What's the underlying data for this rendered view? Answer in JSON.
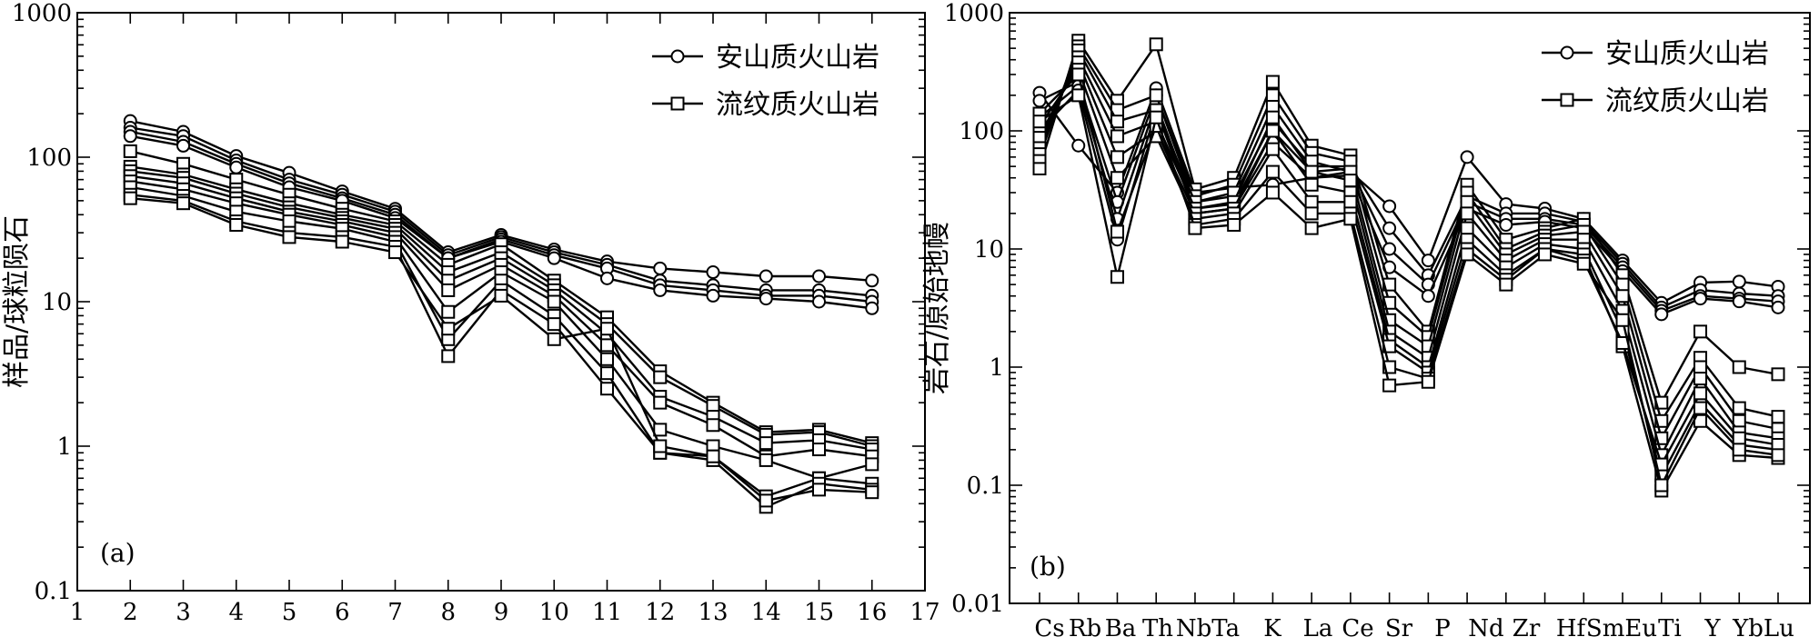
{
  "chart_data": [
    {
      "type": "line",
      "panel_label": "(a)",
      "ylabel": "样品/球粒陨石",
      "xlabel": "",
      "yscale": "log",
      "ylim": [
        0.1,
        1000
      ],
      "xlim": [
        1,
        17
      ],
      "x_ticks": [
        "1",
        "2",
        "3",
        "4",
        "5",
        "6",
        "7",
        "8",
        "9",
        "10",
        "11",
        "12",
        "13",
        "14",
        "15",
        "16",
        "17"
      ],
      "y_ticks": [
        "0.1",
        "1",
        "10",
        "100",
        "1000"
      ],
      "x": [
        2,
        3,
        4,
        5,
        6,
        7,
        8,
        9,
        10,
        11,
        12,
        13,
        14,
        15,
        16
      ],
      "legend_position": "top-right",
      "legend": [
        {
          "label": "安山质火山岩",
          "marker": "circle"
        },
        {
          "label": "流纹质火山岩",
          "marker": "square"
        }
      ],
      "series": [
        {
          "group": "安山质火山岩",
          "marker": "circle",
          "values": [
            178,
            150,
            102,
            78,
            58,
            44,
            22,
            29,
            23,
            19,
            17,
            16,
            15,
            15,
            14
          ]
        },
        {
          "group": "安山质火山岩",
          "marker": "circle",
          "values": [
            160,
            140,
            95,
            70,
            55,
            42,
            21,
            28,
            22,
            18,
            14,
            13,
            12,
            12,
            11
          ]
        },
        {
          "group": "安山质火山岩",
          "marker": "circle",
          "values": [
            150,
            128,
            90,
            66,
            52,
            40,
            20,
            27,
            21,
            17,
            13,
            12,
            11,
            11,
            10
          ]
        },
        {
          "group": "安山质火山岩",
          "marker": "circle",
          "values": [
            140,
            120,
            85,
            62,
            50,
            38,
            20,
            26,
            20,
            14.5,
            12,
            11,
            10.5,
            10,
            9
          ]
        },
        {
          "group": "流纹质火山岩",
          "marker": "square",
          "values": [
            110,
            90,
            70,
            55,
            44,
            36,
            18,
            25,
            14,
            7.8,
            3.3,
            2.0,
            1.25,
            1.3,
            1.05
          ]
        },
        {
          "group": "流纹质火山岩",
          "marker": "square",
          "values": [
            86,
            76,
            60,
            48,
            40,
            34,
            16,
            22,
            13,
            7.0,
            3.0,
            1.9,
            1.2,
            1.25,
            1.0
          ]
        },
        {
          "group": "流纹质火山岩",
          "marker": "square",
          "values": [
            80,
            72,
            56,
            45,
            38,
            32,
            14,
            20,
            12,
            6.0,
            2.2,
            1.6,
            1.05,
            1.1,
            0.95
          ]
        },
        {
          "group": "流纹质火山岩",
          "marker": "square",
          "values": [
            74,
            66,
            52,
            42,
            36,
            30,
            12,
            18,
            11,
            5.0,
            2.0,
            1.4,
            0.85,
            0.95,
            0.85
          ]
        },
        {
          "group": "流纹质火山岩",
          "marker": "square",
          "values": [
            68,
            60,
            48,
            40,
            34,
            28,
            8.5,
            16,
            10,
            4.0,
            1.3,
            1.0,
            0.8,
            0.6,
            0.75
          ]
        },
        {
          "group": "流纹质火山岩",
          "marker": "square",
          "values": [
            62,
            54,
            42,
            36,
            32,
            26,
            5.5,
            14,
            8,
            3.2,
            0.9,
            0.85,
            0.45,
            0.6,
            0.55
          ]
        },
        {
          "group": "流纹质火山岩",
          "marker": "square",
          "values": [
            55,
            50,
            36,
            30,
            28,
            24,
            4.2,
            12,
            7,
            2.5,
            0.9,
            0.8,
            0.38,
            0.55,
            0.5
          ]
        },
        {
          "group": "流纹质火山岩",
          "marker": "square",
          "values": [
            52,
            48,
            34,
            28,
            26,
            22,
            6.5,
            11,
            5.5,
            6.5,
            1.0,
            0.85,
            0.42,
            0.5,
            0.48
          ]
        }
      ]
    },
    {
      "type": "line",
      "panel_label": "(b)",
      "ylabel": "岩石/原始地幔",
      "xlabel": "",
      "yscale": "log",
      "ylim": [
        0.01,
        1000
      ],
      "y_ticks": [
        "0.01",
        "0.1",
        "1",
        "10",
        "100",
        "1000"
      ],
      "categories": [
        "Cs",
        "Rb",
        "Ba",
        "Th",
        "Nb",
        "Ta",
        "K",
        "La",
        "Ce",
        "Sr",
        "P",
        "Nd",
        "Zr",
        "Hf",
        "Sm",
        "Eu",
        "Ti",
        "Y",
        "Yb",
        "Lu"
      ],
      "category_labels": [
        "Cs",
        "Rb",
        "Ba",
        "Th",
        "NbTa",
        "K",
        "La",
        "Ce",
        "Sr",
        "P",
        "Nd",
        "Zr",
        "Hf",
        "SmEu",
        "Ti",
        "Y",
        "YbLu"
      ],
      "legend_position": "top-right",
      "legend": [
        {
          "label": "安山质火山岩",
          "marker": "circle"
        },
        {
          "label": "流纹质火山岩",
          "marker": "square"
        }
      ],
      "series": [
        {
          "group": "安山质火山岩",
          "marker": "circle",
          "values": [
            210,
            75,
            30,
            230,
            30,
            33,
            35,
            40,
            45,
            23,
            8,
            60,
            24,
            22,
            18,
            8,
            3.5,
            5.2,
            5.3,
            4.8
          ]
        },
        {
          "group": "安山质火山岩",
          "marker": "circle",
          "values": [
            180,
            260,
            25,
            200,
            25,
            28,
            120,
            50,
            50,
            15,
            6,
            28,
            20,
            20,
            17,
            7.5,
            3.2,
            4.5,
            4.2,
            4.0
          ]
        },
        {
          "group": "安山质火山岩",
          "marker": "circle",
          "values": [
            130,
            240,
            18,
            170,
            22,
            24,
            100,
            45,
            48,
            10,
            5,
            25,
            18,
            18,
            16,
            7,
            3.0,
            4.0,
            3.8,
            3.6
          ]
        },
        {
          "group": "安山质火山岩",
          "marker": "circle",
          "values": [
            100,
            220,
            12,
            150,
            20,
            22,
            80,
            40,
            42,
            7,
            4,
            22,
            16,
            17,
            15,
            6.5,
            2.8,
            3.8,
            3.6,
            3.2
          ]
        },
        {
          "group": "流纹质火山岩",
          "marker": "square",
          "values": [
            48,
            580,
            180,
            540,
            32,
            40,
            260,
            75,
            62,
            5,
            2,
            35,
            12,
            15,
            18,
            6,
            0.5,
            2.0,
            1.0,
            0.87
          ]
        },
        {
          "group": "流纹质火山岩",
          "marker": "square",
          "values": [
            60,
            520,
            150,
            200,
            28,
            35,
            200,
            65,
            55,
            3.5,
            1.8,
            30,
            10,
            14,
            16,
            5,
            0.35,
            1.2,
            0.45,
            0.38
          ]
        },
        {
          "group": "流纹质火山岩",
          "marker": "square",
          "values": [
            70,
            480,
            120,
            150,
            25,
            30,
            160,
            55,
            45,
            2.5,
            1.5,
            25,
            9,
            13,
            14,
            4,
            0.25,
            1.0,
            0.35,
            0.3
          ]
        },
        {
          "group": "流纹质火山岩",
          "marker": "square",
          "values": [
            80,
            420,
            90,
            120,
            22,
            25,
            130,
            45,
            38,
            2,
            1.2,
            20,
            8,
            12,
            12,
            3,
            0.18,
            0.8,
            0.28,
            0.25
          ]
        },
        {
          "group": "流纹质火山岩",
          "marker": "square",
          "values": [
            90,
            380,
            60,
            100,
            20,
            22,
            100,
            35,
            30,
            1.7,
            1.0,
            15,
            7,
            11,
            10,
            2,
            0.12,
            0.5,
            0.22,
            0.2
          ]
        },
        {
          "group": "流纹质火山岩",
          "marker": "square",
          "values": [
            110,
            330,
            40,
            90,
            18,
            20,
            70,
            25,
            25,
            1.5,
            0.9,
            12,
            6,
            10,
            9,
            1.5,
            0.09,
            0.35,
            0.18,
            0.17
          ]
        },
        {
          "group": "流纹质火山岩",
          "marker": "square",
          "values": [
            140,
            300,
            14,
            110,
            16,
            18,
            45,
            20,
            20,
            1.0,
            0.8,
            10,
            5.5,
            10,
            8,
            1.6,
            0.15,
            0.6,
            0.25,
            0.22
          ]
        },
        {
          "group": "流纹质火山岩",
          "marker": "square",
          "values": [
            120,
            200,
            5.8,
            130,
            15,
            16,
            30,
            15,
            18,
            0.7,
            0.75,
            9,
            5,
            9,
            7.5,
            2.5,
            0.1,
            0.45,
            0.2,
            0.18
          ]
        }
      ]
    }
  ]
}
